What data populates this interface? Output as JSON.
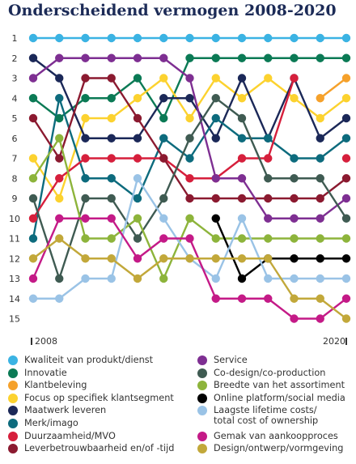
{
  "chart_data": {
    "type": "line",
    "title": "Onderscheidend vermogen 2008-2020",
    "x_start_label": "2008",
    "x_end_label": "2020",
    "x": [
      2008,
      2009,
      2010,
      2011,
      2012,
      2013,
      2014,
      2015,
      2016,
      2017,
      2018,
      2019,
      2020
    ],
    "y_ticks": [
      1,
      2,
      3,
      4,
      5,
      6,
      7,
      8,
      9,
      10,
      11,
      12,
      13,
      14,
      15
    ],
    "ylim": [
      1,
      15
    ],
    "y_inverted": true,
    "series": [
      {
        "name": "Kwaliteit van produkt/dienst",
        "color": "#3bb3e3",
        "values": [
          1,
          1,
          1,
          1,
          1,
          1,
          1,
          1,
          1,
          1,
          1,
          1,
          1
        ]
      },
      {
        "name": "Innovatie",
        "color": "#0b7a55",
        "values": [
          4,
          5,
          4,
          4,
          3,
          5,
          2,
          2,
          2,
          2,
          2,
          2,
          2
        ]
      },
      {
        "name": "Klantbeleving",
        "color": "#f5a12b",
        "values": [
          null,
          null,
          null,
          null,
          null,
          null,
          null,
          null,
          null,
          null,
          null,
          4,
          3
        ]
      },
      {
        "name": "Focus op specifiek klantsegment",
        "color": "#fcd22f",
        "values": [
          7,
          9,
          5,
          5,
          4,
          3,
          5,
          3,
          4,
          3,
          4,
          5,
          4
        ]
      },
      {
        "name": "Maatwerk leveren",
        "color": "#1b2858",
        "values": [
          2,
          3,
          6,
          6,
          6,
          4,
          4,
          6,
          3,
          6,
          3,
          6,
          5
        ]
      },
      {
        "name": "Merk/imago",
        "color": "#0d6b7d",
        "values": [
          11,
          4,
          8,
          8,
          9,
          6,
          7,
          5,
          6,
          6,
          7,
          7,
          6
        ]
      },
      {
        "name": "Duurzaamheid/MVO",
        "color": "#d61f3c",
        "values": [
          10,
          8,
          7,
          7,
          7,
          7,
          8,
          8,
          7,
          7,
          3,
          null,
          7
        ]
      },
      {
        "name": "Leverbetrouwbaarheid en/of -tijd",
        "color": "#8b1a30",
        "values": [
          5,
          7,
          3,
          3,
          5,
          7,
          9,
          9,
          9,
          9,
          9,
          9,
          8
        ]
      },
      {
        "name": "Service",
        "color": "#7e2f92",
        "values": [
          3,
          2,
          2,
          2,
          2,
          2,
          3,
          8,
          8,
          10,
          10,
          10,
          9
        ]
      },
      {
        "name": "Co-design/co-production",
        "color": "#3f5b52",
        "values": [
          9,
          13,
          9,
          9,
          11,
          9,
          6,
          4,
          5,
          8,
          8,
          8,
          10
        ]
      },
      {
        "name": "Breedte van het assortiment",
        "color": "#8db43b",
        "values": [
          8,
          6,
          11,
          11,
          10,
          13,
          10,
          11,
          11,
          11,
          11,
          11,
          11
        ]
      },
      {
        "name": "Online platform/social media",
        "color": "#000000",
        "values": [
          null,
          null,
          null,
          null,
          null,
          null,
          null,
          10,
          13,
          12,
          12,
          12,
          12
        ]
      },
      {
        "name": "Laagste lifetime costs/\ntotal cost of ownership",
        "color": "#9ac3e6",
        "values": [
          14,
          14,
          13,
          13,
          8,
          10,
          12,
          13,
          10,
          13,
          13,
          13,
          13
        ]
      },
      {
        "name": "Gemak van aankoopproces",
        "color": "#c41a87",
        "values": [
          13,
          10,
          10,
          10,
          12,
          11,
          11,
          14,
          14,
          14,
          15,
          15,
          14
        ]
      },
      {
        "name": "Design/ontwerp/vormgeving",
        "color": "#c2a83a",
        "values": [
          12,
          11,
          12,
          12,
          13,
          12,
          12,
          12,
          12,
          12,
          14,
          14,
          15
        ]
      }
    ]
  }
}
